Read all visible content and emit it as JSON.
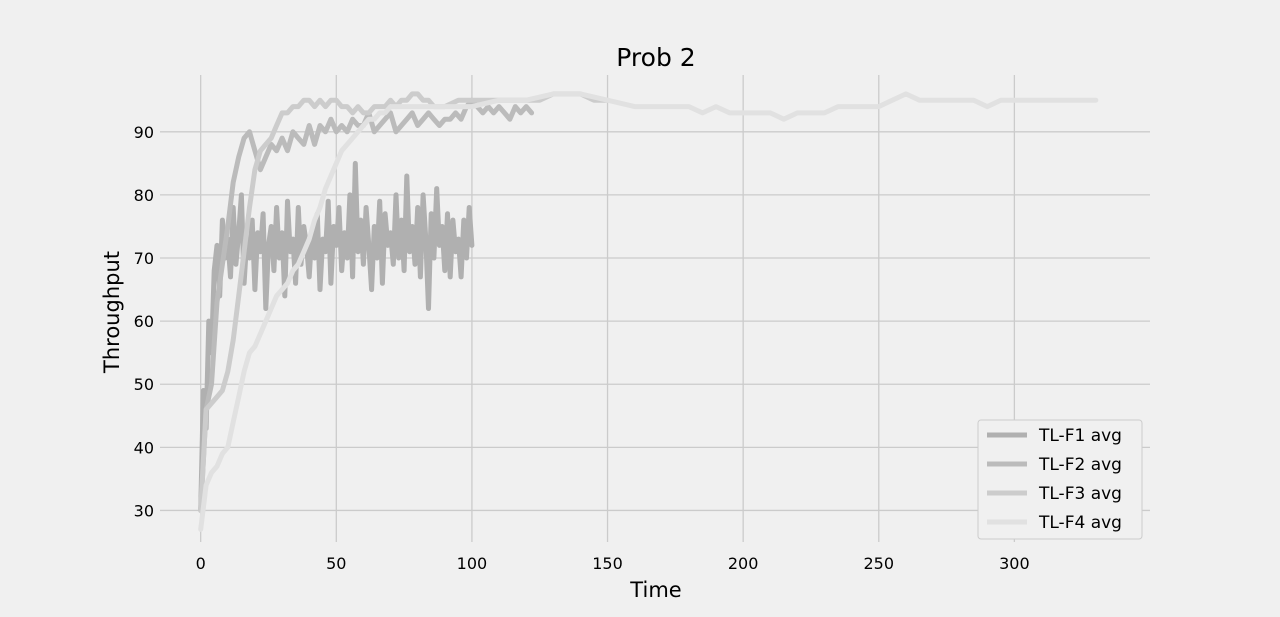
{
  "chart_data": {
    "type": "line",
    "title": "Prob 2",
    "xlabel": "Time",
    "ylabel": "Throughput",
    "xlim": [
      -15,
      350
    ],
    "ylim": [
      25,
      99
    ],
    "xticks": [
      0,
      50,
      100,
      150,
      200,
      250,
      300
    ],
    "yticks": [
      30,
      40,
      50,
      60,
      70,
      80,
      90
    ],
    "grid": true,
    "legend_position": "lower-right",
    "series": [
      {
        "name": "TL-F1 avg",
        "color": "#b0b0b0",
        "x": [
          0,
          1,
          2,
          3,
          4,
          5,
          6,
          7,
          8,
          9,
          10,
          11,
          12,
          13,
          14,
          15,
          16,
          17,
          18,
          19,
          20,
          21,
          22,
          23,
          24,
          25,
          26,
          27,
          28,
          29,
          30,
          31,
          32,
          33,
          34,
          35,
          36,
          37,
          38,
          39,
          40,
          41,
          42,
          43,
          44,
          45,
          46,
          47,
          48,
          49,
          50,
          51,
          52,
          53,
          54,
          55,
          56,
          57,
          58,
          59,
          60,
          61,
          62,
          63,
          64,
          65,
          66,
          67,
          68,
          69,
          70,
          71,
          72,
          73,
          74,
          75,
          76,
          77,
          78,
          79,
          80,
          81,
          82,
          83,
          84,
          85,
          86,
          87,
          88,
          89,
          90,
          91,
          92,
          93,
          94,
          95,
          96,
          97,
          98,
          99,
          100
        ],
        "y": [
          30,
          49,
          43,
          60,
          55,
          68,
          72,
          64,
          76,
          70,
          73,
          67,
          78,
          69,
          74,
          80,
          66,
          73,
          70,
          76,
          65,
          74,
          71,
          77,
          62,
          72,
          75,
          68,
          78,
          70,
          74,
          64,
          79,
          71,
          73,
          66,
          78,
          69,
          75,
          72,
          67,
          74,
          70,
          77,
          65,
          73,
          71,
          79,
          66,
          75,
          72,
          78,
          68,
          74,
          70,
          80,
          67,
          85,
          71,
          76,
          69,
          78,
          72,
          65,
          75,
          70,
          79,
          66,
          77,
          72,
          74,
          69,
          80,
          70,
          76,
          68,
          83,
          71,
          75,
          69,
          78,
          67,
          80,
          73,
          62,
          77,
          70,
          81,
          72,
          75,
          68,
          77,
          67,
          76,
          71,
          73,
          67,
          76,
          70,
          78,
          72
        ]
      },
      {
        "name": "TL-F2 avg",
        "color": "#bbbbbb",
        "x": [
          0,
          2,
          4,
          6,
          8,
          10,
          12,
          14,
          16,
          18,
          20,
          22,
          24,
          26,
          28,
          30,
          32,
          34,
          36,
          38,
          40,
          42,
          44,
          46,
          48,
          50,
          52,
          54,
          56,
          58,
          60,
          62,
          64,
          66,
          68,
          70,
          72,
          74,
          76,
          78,
          80,
          82,
          84,
          86,
          88,
          90,
          92,
          94,
          96,
          98,
          100,
          102,
          104,
          106,
          108,
          110,
          112,
          114,
          116,
          118,
          120,
          122
        ],
        "y": [
          30,
          46,
          50,
          63,
          69,
          75,
          82,
          86,
          89,
          90,
          87,
          84,
          86,
          88,
          87,
          89,
          87,
          90,
          89,
          88,
          91,
          88,
          91,
          90,
          92,
          90,
          91,
          90,
          92,
          91,
          91,
          93,
          90,
          91,
          92,
          93,
          90,
          91,
          92,
          93,
          91,
          92,
          93,
          92,
          91,
          92,
          92,
          93,
          92,
          94,
          95,
          94,
          93,
          94,
          93,
          94,
          93,
          92,
          94,
          93,
          94,
          93
        ]
      },
      {
        "name": "TL-F3 avg",
        "color": "#cccccc",
        "x": [
          0,
          2,
          4,
          6,
          8,
          10,
          12,
          14,
          16,
          18,
          20,
          22,
          24,
          26,
          28,
          30,
          32,
          34,
          36,
          38,
          40,
          42,
          44,
          46,
          48,
          50,
          52,
          54,
          56,
          58,
          60,
          62,
          64,
          66,
          68,
          70,
          72,
          74,
          76,
          78,
          80,
          82,
          84,
          86,
          88,
          90,
          95,
          100,
          105,
          110,
          115,
          120,
          125,
          130,
          135,
          140,
          145,
          150
        ],
        "y": [
          30,
          46,
          47,
          48,
          49,
          52,
          57,
          64,
          71,
          78,
          84,
          87,
          88,
          89,
          91,
          93,
          93,
          94,
          94,
          95,
          95,
          94,
          95,
          94,
          95,
          95,
          94,
          94,
          93,
          94,
          93,
          93,
          94,
          94,
          94,
          95,
          94,
          95,
          95,
          96,
          96,
          95,
          95,
          94,
          94,
          94,
          95,
          95,
          95,
          95,
          95,
          95,
          95,
          96,
          96,
          96,
          95,
          95
        ]
      },
      {
        "name": "TL-F4 avg",
        "color": "#e1e1e1",
        "x": [
          0,
          2,
          4,
          6,
          8,
          10,
          12,
          14,
          16,
          18,
          20,
          22,
          24,
          26,
          28,
          30,
          32,
          34,
          36,
          38,
          40,
          42,
          44,
          46,
          48,
          50,
          52,
          54,
          56,
          58,
          60,
          62,
          64,
          66,
          68,
          70,
          75,
          80,
          85,
          90,
          95,
          100,
          110,
          120,
          130,
          140,
          150,
          160,
          170,
          180,
          185,
          190,
          195,
          200,
          205,
          210,
          215,
          220,
          225,
          230,
          235,
          240,
          245,
          250,
          255,
          260,
          265,
          270,
          275,
          280,
          285,
          290,
          295,
          300,
          305,
          310,
          315,
          320,
          325,
          330
        ],
        "y": [
          27,
          34,
          36,
          37,
          39,
          40,
          44,
          48,
          52,
          55,
          56,
          58,
          60,
          62,
          64,
          65,
          66,
          68,
          69,
          71,
          73,
          76,
          78,
          81,
          83,
          85,
          87,
          88,
          89,
          90,
          91,
          92,
          92,
          93,
          93,
          94,
          94,
          94,
          94,
          94,
          94,
          94,
          95,
          95,
          96,
          96,
          95,
          94,
          94,
          94,
          93,
          94,
          93,
          93,
          93,
          93,
          92,
          93,
          93,
          93,
          94,
          94,
          94,
          94,
          95,
          96,
          95,
          95,
          95,
          95,
          95,
          94,
          95,
          95,
          95,
          95,
          95,
          95,
          95,
          95
        ]
      }
    ]
  }
}
